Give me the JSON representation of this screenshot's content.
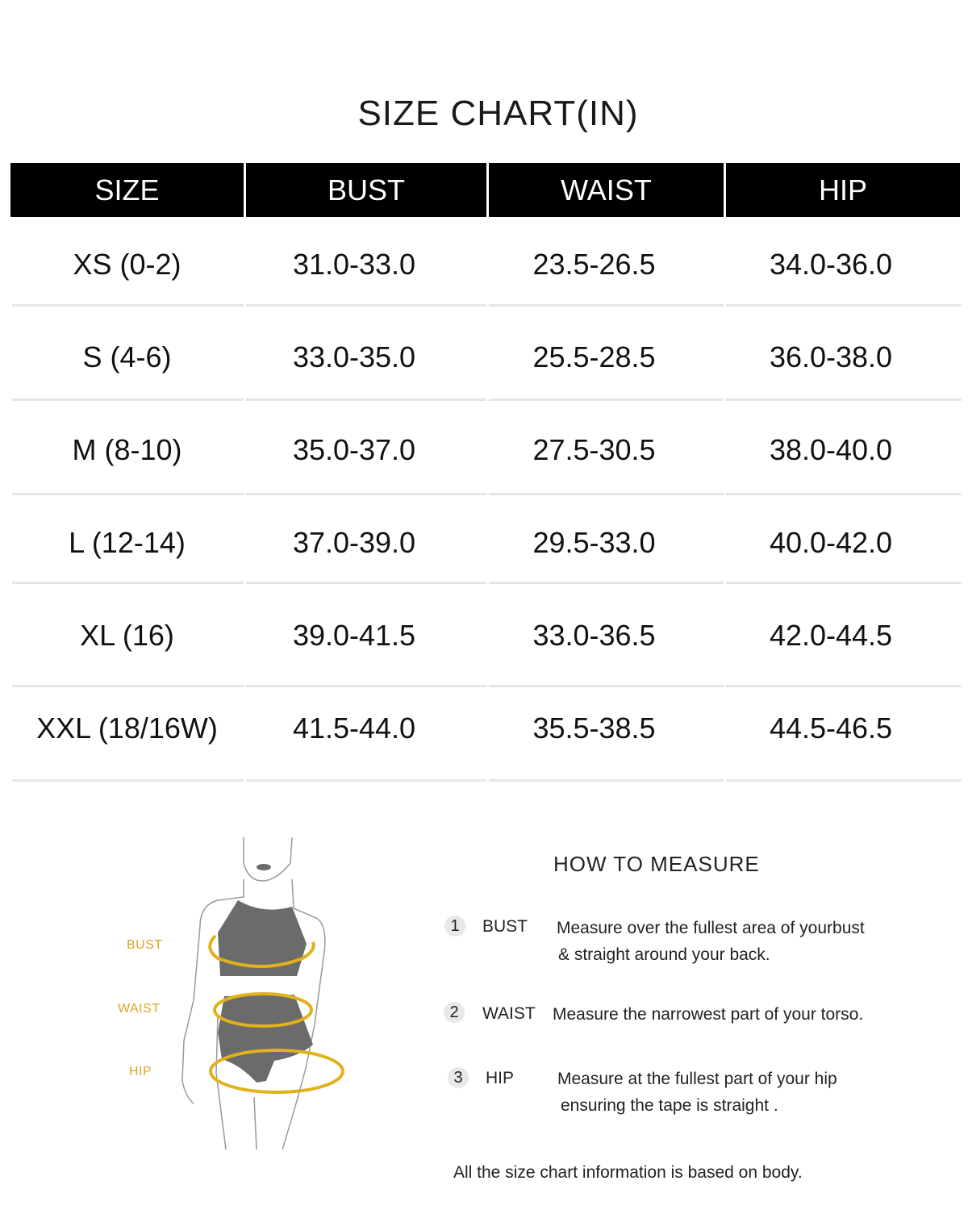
{
  "title": "SIZE CHART(IN)",
  "table": {
    "headers": [
      "SIZE",
      "BUST",
      "WAIST",
      "HIP"
    ],
    "rows": [
      [
        "XS (0-2)",
        "31.0-33.0",
        "23.5-26.5",
        "34.0-36.0"
      ],
      [
        "S (4-6)",
        "33.0-35.0",
        "25.5-28.5",
        "36.0-38.0"
      ],
      [
        "M (8-10)",
        "35.0-37.0",
        "27.5-30.5",
        "38.0-40.0"
      ],
      [
        "L (12-14)",
        "37.0-39.0",
        "29.5-33.0",
        "40.0-42.0"
      ],
      [
        "XL (16)",
        "39.0-41.5",
        "33.0-36.5",
        "42.0-44.5"
      ],
      [
        "XXL (18/16W)",
        "41.5-44.0",
        "35.5-38.5",
        "44.5-46.5"
      ]
    ]
  },
  "figure": {
    "labels": {
      "bust": "BUST",
      "waist": "WAIST",
      "hip": "HIP"
    },
    "accent_color": "#e0b21c",
    "garment_color": "#6b6b6b"
  },
  "how_to_measure": {
    "title": "HOW TO MEASURE",
    "items": [
      {
        "num": "1",
        "name": "BUST",
        "desc": [
          "Measure over the fullest area of yourbust",
          "& straight around your back."
        ]
      },
      {
        "num": "2",
        "name": "WAIST",
        "desc": [
          "Measure the narrowest part of your torso."
        ]
      },
      {
        "num": "3",
        "name": "HIP",
        "desc": [
          "Measure at the fullest part of your hip",
          "ensuring the tape is straight ."
        ]
      }
    ],
    "note": "All the size chart information is based on body."
  }
}
